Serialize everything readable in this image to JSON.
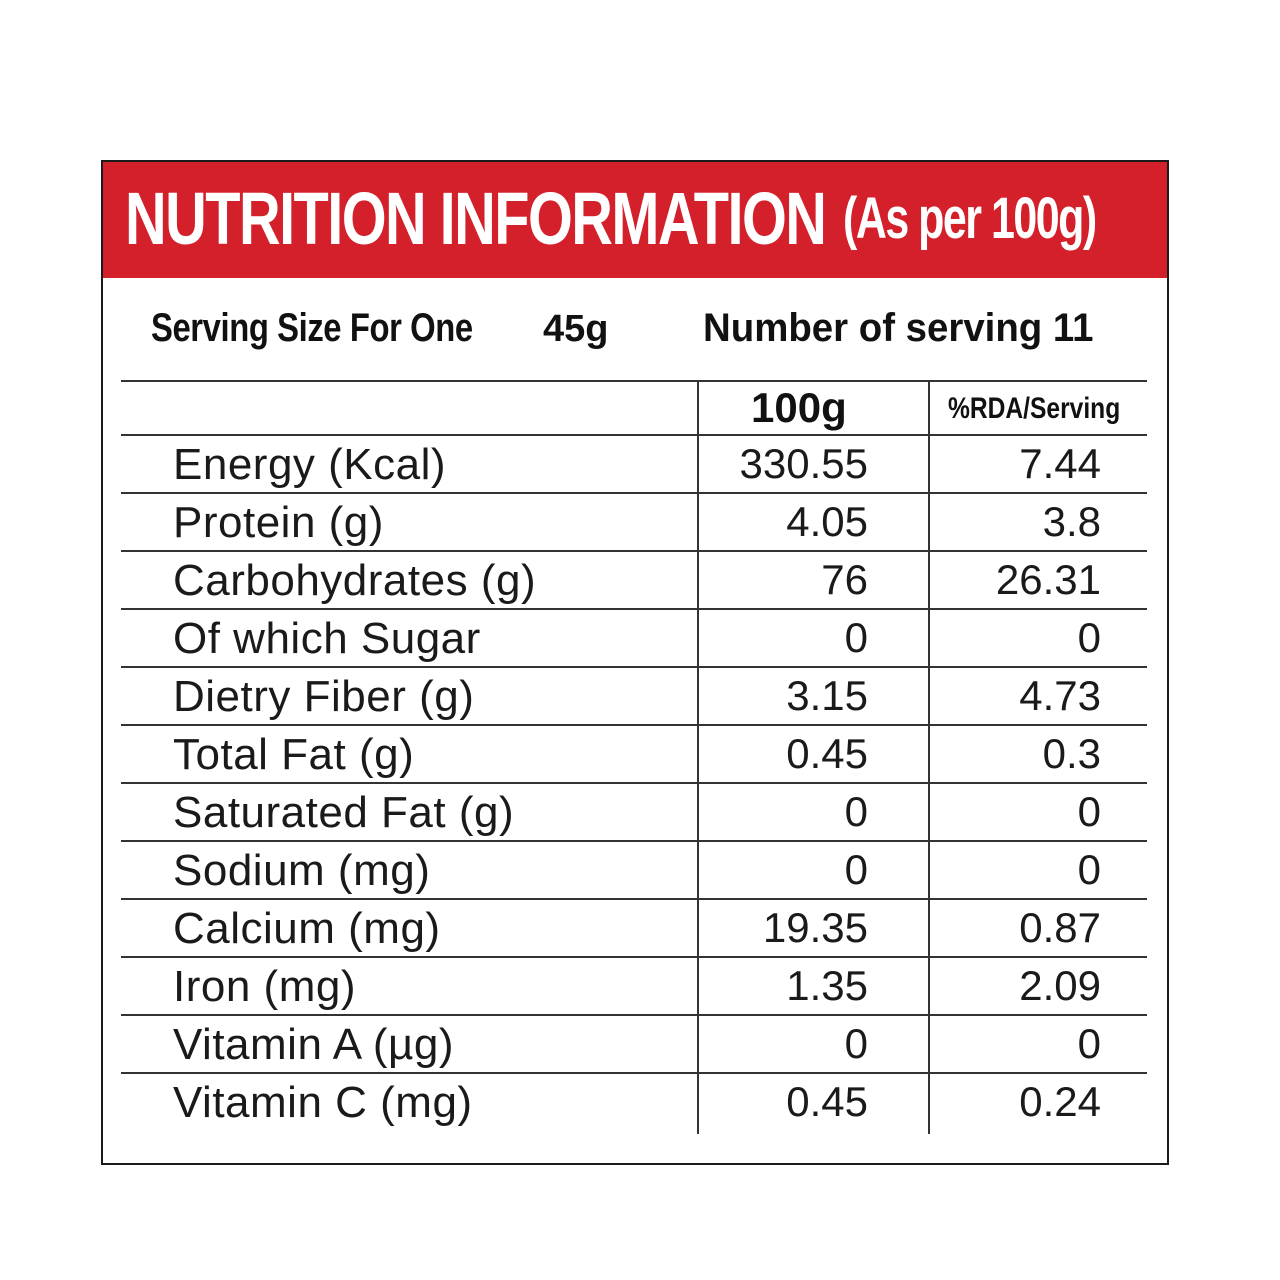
{
  "title": {
    "main": "NUTRITION INFORMATION",
    "basis": "(As per 100g)"
  },
  "serving": {
    "size_label": "Serving Size For One",
    "size_value": "45g",
    "count_label": "Number of serving 11"
  },
  "columns": {
    "per_100g": "100g",
    "rda": "%RDA/Serving"
  },
  "rows": [
    {
      "name": "Energy (Kcal)",
      "per_100g": "330.55",
      "rda": "7.44"
    },
    {
      "name": "Protein (g)",
      "per_100g": "4.05",
      "rda": "3.8"
    },
    {
      "name": "Carbohydrates (g)",
      "per_100g": "76",
      "rda": "26.31"
    },
    {
      "name": "Of which Sugar",
      "per_100g": "0",
      "rda": "0"
    },
    {
      "name": "Dietry Fiber (g)",
      "per_100g": "3.15",
      "rda": "4.73"
    },
    {
      "name": "Total Fat (g)",
      "per_100g": "0.45",
      "rda": "0.3"
    },
    {
      "name": "Saturated Fat (g)",
      "per_100g": "0",
      "rda": "0"
    },
    {
      "name": "Sodium (mg)",
      "per_100g": "0",
      "rda": "0"
    },
    {
      "name": "Calcium (mg)",
      "per_100g": "19.35",
      "rda": "0.87"
    },
    {
      "name": "Iron (mg)",
      "per_100g": "1.35",
      "rda": "2.09"
    },
    {
      "name": "Vitamin A (µg)",
      "per_100g": "0",
      "rda": "0"
    },
    {
      "name": "Vitamin C (mg)",
      "per_100g": "0.45",
      "rda": "0.24"
    }
  ],
  "colors": {
    "header_red": "#d3202a",
    "text": "#1a1a1a",
    "rule": "#333333"
  }
}
